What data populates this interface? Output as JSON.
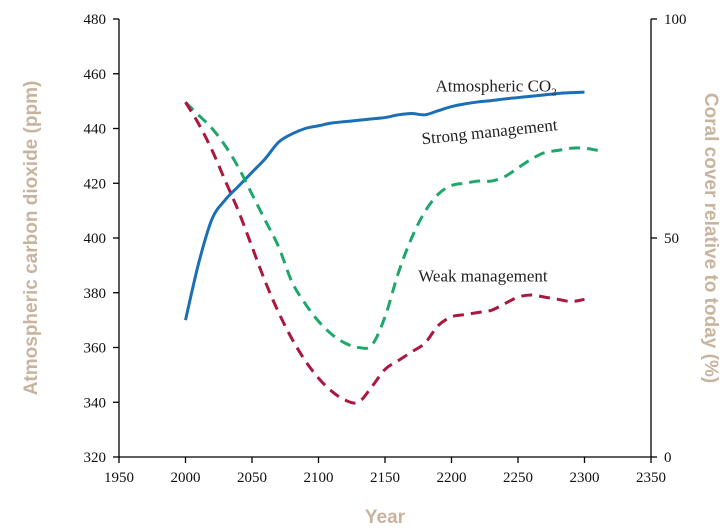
{
  "chart_data": {
    "type": "line",
    "xlabel": "Year",
    "ylabel_left": "Atmospheric carbon dioxide (ppm)",
    "ylabel_right": "Coral cover relative to today (%)",
    "xlim": [
      1950,
      2350
    ],
    "ylim_left": [
      320,
      480
    ],
    "ylim_right": [
      0,
      100
    ],
    "x_ticks": [
      1950,
      2000,
      2050,
      2100,
      2150,
      2200,
      2250,
      2300,
      2350
    ],
    "y_ticks_left": [
      320,
      340,
      360,
      380,
      400,
      420,
      440,
      460,
      480
    ],
    "y_ticks_right": [
      0,
      50,
      100
    ],
    "colors": {
      "axis_label": "#c8b49e",
      "co2": "#1a6fb5",
      "strong": "#1fa76a",
      "weak": "#a8183f"
    },
    "series": [
      {
        "name": "Atmospheric CO2",
        "label_main": "Atmospheric CO",
        "label_sub": "2",
        "axis": "left",
        "style": "solid",
        "x": [
          2000,
          2010,
          2020,
          2030,
          2040,
          2050,
          2060,
          2070,
          2080,
          2090,
          2100,
          2110,
          2120,
          2130,
          2140,
          2150,
          2160,
          2170,
          2180,
          2190,
          2200,
          2210,
          2220,
          2230,
          2240,
          2250,
          2260,
          2270,
          2280,
          2290,
          2300
        ],
        "y": [
          370,
          391,
          407,
          414,
          419,
          424,
          429,
          435,
          438,
          440,
          441,
          442,
          442.5,
          443,
          443.5,
          444,
          445,
          445.5,
          445,
          446.5,
          448,
          449,
          449.7,
          450.2,
          450.8,
          451.3,
          451.8,
          452.3,
          452.8,
          453.1,
          453.3
        ]
      },
      {
        "name": "Strong management",
        "label": "Strong management",
        "axis": "right",
        "style": "dashed",
        "x": [
          2000,
          2010,
          2020,
          2030,
          2040,
          2050,
          2060,
          2070,
          2080,
          2090,
          2100,
          2110,
          2120,
          2130,
          2140,
          2150,
          2160,
          2170,
          2180,
          2190,
          2200,
          2210,
          2220,
          2230,
          2240,
          2250,
          2260,
          2270,
          2280,
          2290,
          2300,
          2310
        ],
        "y": [
          81,
          78,
          75,
          71,
          66,
          60,
          54,
          48,
          40,
          35,
          31,
          28,
          26,
          25,
          25.5,
          32,
          42,
          50,
          56,
          60,
          62,
          62.5,
          63,
          63,
          64,
          66,
          68,
          69.5,
          70,
          70.5,
          70.5,
          70
        ]
      },
      {
        "name": "Weak management",
        "label": "Weak management",
        "axis": "right",
        "style": "dashed",
        "x": [
          2000,
          2010,
          2020,
          2030,
          2040,
          2050,
          2060,
          2070,
          2080,
          2090,
          2100,
          2110,
          2120,
          2130,
          2140,
          2150,
          2160,
          2170,
          2180,
          2190,
          2200,
          2210,
          2220,
          2230,
          2240,
          2250,
          2260,
          2270,
          2280,
          2290,
          2300
        ],
        "y": [
          81,
          76,
          70,
          63,
          56,
          48,
          40,
          33,
          27,
          22,
          18,
          15,
          13,
          12.5,
          16,
          20,
          22,
          24,
          26,
          30,
          32,
          32.5,
          33,
          33.5,
          35,
          36.5,
          37,
          36.5,
          36,
          35.5,
          36
        ]
      }
    ]
  }
}
